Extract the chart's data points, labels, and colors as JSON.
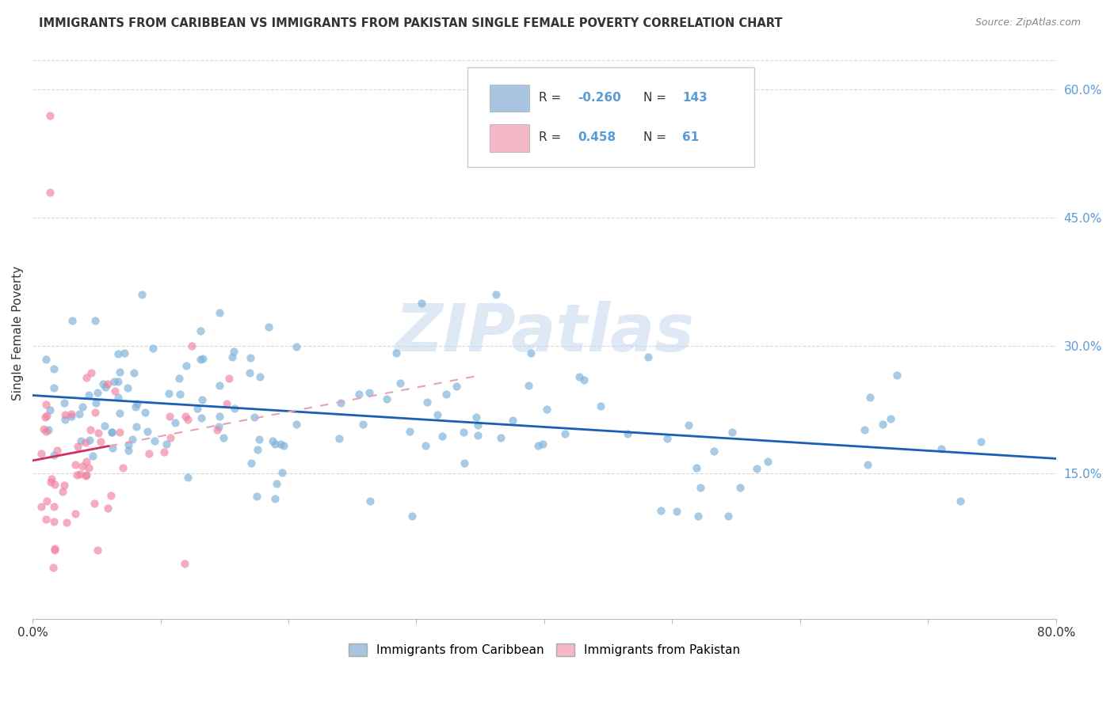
{
  "title": "IMMIGRANTS FROM CARIBBEAN VS IMMIGRANTS FROM PAKISTAN SINGLE FEMALE POVERTY CORRELATION CHART",
  "source": "Source: ZipAtlas.com",
  "ylabel": "Single Female Poverty",
  "right_yticks": [
    "60.0%",
    "45.0%",
    "30.0%",
    "15.0%"
  ],
  "right_ytick_vals": [
    0.6,
    0.45,
    0.3,
    0.15
  ],
  "legend_caribbean_color": "#a8c4e0",
  "legend_pakistan_color": "#f4b8c8",
  "legend_R_caribbean": "-0.260",
  "legend_N_caribbean": "143",
  "legend_R_pakistan": "0.458",
  "legend_N_pakistan": "61",
  "watermark": "ZIPatlas",
  "xlim": [
    0.0,
    0.8
  ],
  "ylim": [
    -0.02,
    0.65
  ],
  "background_color": "#ffffff",
  "grid_color": "#d8d8d8",
  "caribbean_scatter_color": "#7ab0d8",
  "pakistan_scatter_color": "#f080a0",
  "caribbean_line_color": "#1a5fb4",
  "pakistan_line_color": "#d03060",
  "pakistan_dash_color": "#e8a0b8",
  "text_color": "#333333",
  "right_axis_color": "#5b9bd5",
  "source_color": "#888888"
}
